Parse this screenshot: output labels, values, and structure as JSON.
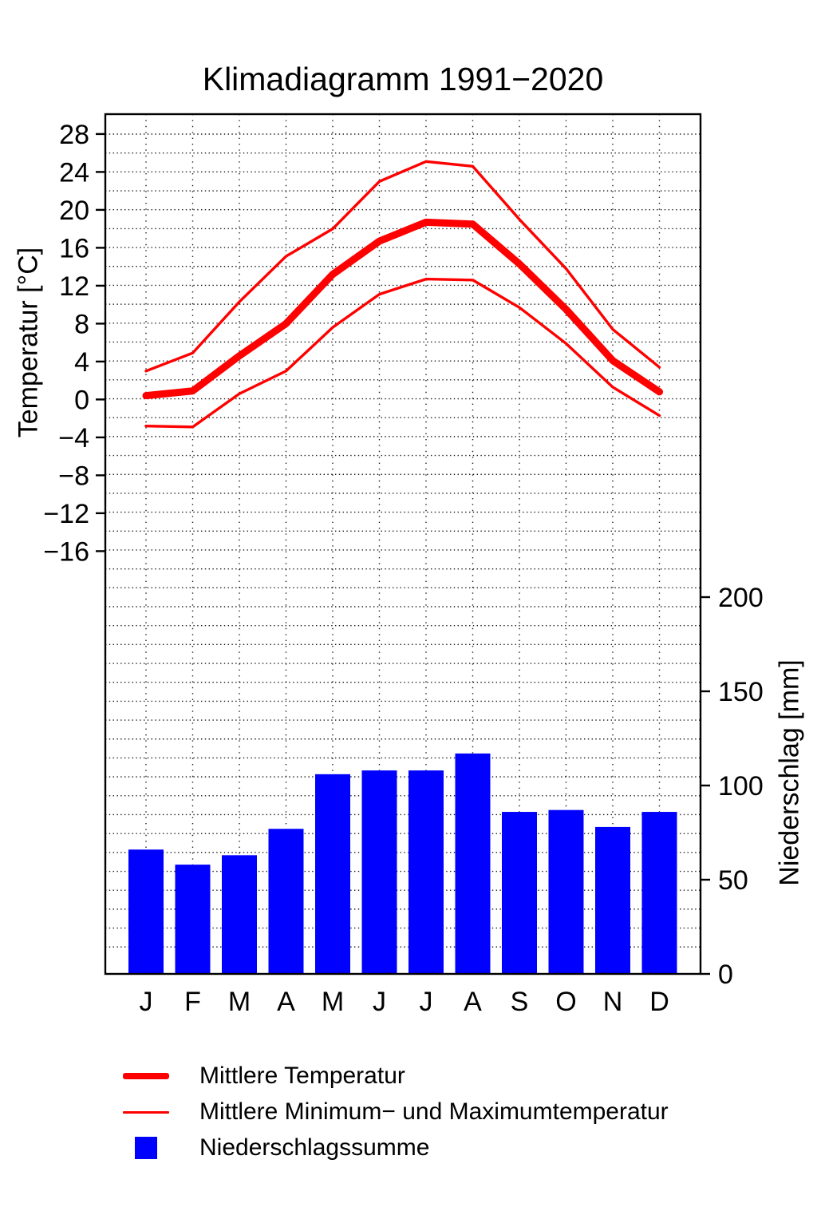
{
  "chart_data": {
    "type": "combo",
    "title": "Klimadiagramm 1991−2020",
    "categories": [
      "J",
      "F",
      "M",
      "A",
      "M",
      "J",
      "J",
      "A",
      "S",
      "O",
      "N",
      "D"
    ],
    "series": [
      {
        "name": "Mittlere Temperatur",
        "type": "line",
        "axis": "temperature",
        "style": "thick",
        "values": [
          0.4,
          0.9,
          4.6,
          8.0,
          13.2,
          16.7,
          18.7,
          18.5,
          14.3,
          9.5,
          4.1,
          0.8
        ]
      },
      {
        "name": "Mittlere Maximumtemperatur",
        "type": "line",
        "axis": "temperature",
        "style": "thin",
        "values": [
          3.0,
          4.9,
          10.3,
          15.1,
          18.0,
          23.0,
          25.1,
          24.6,
          19.0,
          13.8,
          7.4,
          3.4
        ]
      },
      {
        "name": "Mittlere Minimumtemperatur",
        "type": "line",
        "axis": "temperature",
        "style": "thin",
        "values": [
          -2.8,
          -2.9,
          0.6,
          3.0,
          7.6,
          11.1,
          12.7,
          12.6,
          9.7,
          5.9,
          1.3,
          -1.7
        ]
      },
      {
        "name": "Niederschlagssumme",
        "type": "bar",
        "axis": "precipitation",
        "values": [
          66,
          58,
          63,
          77,
          106,
          108,
          108,
          117,
          86,
          87,
          78,
          86
        ]
      }
    ],
    "axes": {
      "left": {
        "label": "Temperatur [°C]",
        "ticks": [
          28,
          24,
          20,
          16,
          12,
          8,
          4,
          0,
          -4,
          -8,
          -12,
          -16
        ],
        "range_behavior": "temperature scale, 4°C major steps, 2°C dotted grid"
      },
      "right": {
        "label": "Niederschlag [mm]",
        "ticks": [
          0,
          50,
          100,
          150,
          200
        ],
        "range_behavior": "precipitation scale, 50mm major steps, 10mm dotted grid"
      },
      "bottom": {
        "ticks": [
          "J",
          "F",
          "M",
          "A",
          "M",
          "J",
          "J",
          "A",
          "S",
          "O",
          "N",
          "D"
        ]
      }
    },
    "grid": "dotted",
    "legend_position": "below-plot"
  },
  "colors": {
    "temperature_line": "#ff0000",
    "precipitation_bar": "#0000ff",
    "axis": "#000000",
    "grid_dot": "#1a1a1a",
    "background": "#ffffff"
  },
  "legend": {
    "items": [
      {
        "swatch": "thick-red-line",
        "label": "Mittlere Temperatur"
      },
      {
        "swatch": "thin-red-line",
        "label": "Mittlere Minimum− und Maximumtemperatur"
      },
      {
        "swatch": "blue-square",
        "label": "Niederschlagssumme"
      }
    ]
  }
}
